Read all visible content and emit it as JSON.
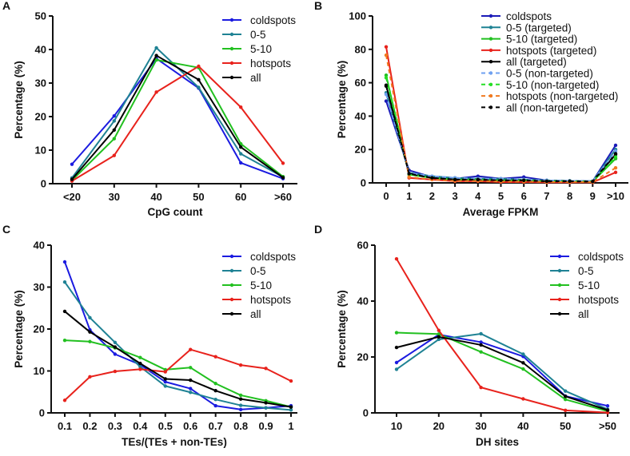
{
  "chart_data": [
    {
      "panel": "A",
      "type": "line",
      "xlabel": "CpG count",
      "ylabel": "Percentage (%)",
      "categories": [
        "<20",
        "30",
        "40",
        "50",
        "60",
        ">60"
      ],
      "ylim": [
        0,
        50
      ],
      "yticks": [
        0,
        10,
        20,
        30,
        40,
        50
      ],
      "grid": false,
      "legend": "top-right",
      "series": [
        {
          "name": "coldspots",
          "color": "#1b1be0",
          "dashed": false,
          "values": [
            5.8,
            20.2,
            37.3,
            28.5,
            6.2,
            1.5
          ]
        },
        {
          "name": "0-5",
          "color": "#1f8294",
          "dashed": false,
          "values": [
            1.7,
            18.7,
            40.5,
            28.7,
            8.9,
            2.0
          ]
        },
        {
          "name": "5-10",
          "color": "#22c020",
          "dashed": false,
          "values": [
            1.0,
            13.4,
            36.9,
            34.6,
            11.9,
            2.1
          ]
        },
        {
          "name": "hotspots",
          "color": "#e8221c",
          "dashed": false,
          "values": [
            0.8,
            8.4,
            27.3,
            35.0,
            22.8,
            6.1
          ]
        },
        {
          "name": "all",
          "color": "#000000",
          "dashed": false,
          "values": [
            1.3,
            16.0,
            38.2,
            31.0,
            10.9,
            1.8
          ]
        }
      ]
    },
    {
      "panel": "B",
      "type": "line",
      "xlabel": "Average FPKM",
      "ylabel": "Percentage (%)",
      "categories": [
        "0",
        "1",
        "2",
        "3",
        "4",
        "5",
        "6",
        "7",
        "8",
        "9",
        ">10"
      ],
      "ylim": [
        0,
        100
      ],
      "yticks": [
        0,
        20,
        40,
        60,
        80,
        100
      ],
      "grid": false,
      "legend": "top-right",
      "series": [
        {
          "name": "coldspots",
          "color": "#1b1bb8",
          "dashed": false,
          "values": [
            49,
            7.5,
            3.5,
            2.5,
            4,
            2.5,
            3.5,
            1.5,
            1.2,
            1,
            22.5
          ]
        },
        {
          "name": "0-5 (targeted)",
          "color": "#1f8294",
          "dashed": false,
          "values": [
            54,
            6,
            4,
            3,
            2.5,
            2.5,
            2,
            1.5,
            1.2,
            1,
            20
          ]
        },
        {
          "name": "5-10 (targeted)",
          "color": "#22c020",
          "dashed": false,
          "values": [
            64.5,
            5,
            3,
            2,
            2,
            1.5,
            1.5,
            1,
            1,
            0.8,
            14.5
          ]
        },
        {
          "name": "hotspots (targeted)",
          "color": "#e8221c",
          "dashed": false,
          "values": [
            81.5,
            3,
            2,
            1,
            1,
            0.5,
            0.5,
            0.3,
            0.3,
            0.3,
            6.3
          ]
        },
        {
          "name": "all (targeted)",
          "color": "#000000",
          "dashed": false,
          "values": [
            58.5,
            5.5,
            3,
            2,
            2,
            1.5,
            1.5,
            1,
            1,
            0.8,
            17
          ]
        },
        {
          "name": "0-5 (non-targeted)",
          "color": "#6fa0f0",
          "dashed": true,
          "values": [
            53,
            6,
            4,
            3,
            2.5,
            2.5,
            2,
            1.5,
            1.2,
            1,
            19
          ]
        },
        {
          "name": "5-10 (non-targeted)",
          "color": "#25de25",
          "dashed": true,
          "values": [
            63,
            5,
            3,
            2,
            2,
            1.5,
            1.5,
            1,
            1,
            0.8,
            15.5
          ]
        },
        {
          "name": "hotspots (non-targeted)",
          "color": "#f07a20",
          "dashed": true,
          "values": [
            76.5,
            3.5,
            2,
            1.2,
            1.2,
            0.8,
            0.8,
            0.5,
            0.5,
            0.5,
            9
          ]
        },
        {
          "name": "all (non-targeted)",
          "color": "#000000",
          "dashed": true,
          "values": [
            58,
            5.5,
            3,
            2,
            2,
            1.5,
            1.5,
            1,
            1,
            0.8,
            17.5
          ]
        }
      ]
    },
    {
      "panel": "C",
      "type": "line",
      "xlabel": "TEs/(TEs + non-TEs)",
      "ylabel": "Percentage (%)",
      "categories": [
        "0.1",
        "0.2",
        "0.3",
        "0.4",
        "0.5",
        "0.6",
        "0.7",
        "0.8",
        "0.9",
        "1"
      ],
      "ylim": [
        0,
        40
      ],
      "yticks": [
        0,
        10,
        20,
        30,
        40
      ],
      "grid": false,
      "legend": "top-right",
      "series": [
        {
          "name": "coldspots",
          "color": "#1b1be0",
          "dashed": false,
          "values": [
            36,
            19.8,
            14,
            11.5,
            7.4,
            5.8,
            1.7,
            0.8,
            1.2,
            1.7
          ]
        },
        {
          "name": "0-5",
          "color": "#1f8294",
          "dashed": false,
          "values": [
            31.2,
            22.7,
            16.8,
            11,
            6.4,
            4.9,
            3.2,
            1.8,
            1.2,
            0.7
          ]
        },
        {
          "name": "5-10",
          "color": "#22c020",
          "dashed": false,
          "values": [
            17.3,
            17,
            15.5,
            13.2,
            10.3,
            10.8,
            7,
            4.2,
            2.9,
            1.4
          ]
        },
        {
          "name": "hotspots",
          "color": "#e8221c",
          "dashed": false,
          "values": [
            3,
            8.6,
            9.9,
            10.4,
            9.8,
            15.1,
            13.4,
            11.4,
            10.6,
            7.6
          ]
        },
        {
          "name": "all",
          "color": "#000000",
          "dashed": false,
          "values": [
            24.2,
            19.3,
            15.7,
            11.8,
            8.1,
            7.8,
            5.3,
            3.3,
            2.4,
            1.4
          ]
        }
      ]
    },
    {
      "panel": "D",
      "type": "line",
      "xlabel": "DH sites",
      "ylabel": "Percentage (%)",
      "categories": [
        "10",
        "20",
        "30",
        "40",
        "50",
        ">50"
      ],
      "ylim": [
        0,
        60
      ],
      "yticks": [
        0,
        20,
        40,
        60
      ],
      "grid": false,
      "legend": "top-right",
      "series": [
        {
          "name": "coldspots",
          "color": "#1b1be0",
          "dashed": false,
          "values": [
            18,
            28,
            25.3,
            20.2,
            6,
            2.5
          ]
        },
        {
          "name": "0-5",
          "color": "#1f8294",
          "dashed": false,
          "values": [
            15.6,
            26.3,
            28.3,
            21,
            7.8,
            1.3
          ]
        },
        {
          "name": "5-10",
          "color": "#22c020",
          "dashed": false,
          "values": [
            28.7,
            28.2,
            21.8,
            15.7,
            4.8,
            0.6
          ]
        },
        {
          "name": "hotspots",
          "color": "#e8221c",
          "dashed": false,
          "values": [
            55.1,
            29.5,
            9.1,
            5,
            0.9,
            0.1
          ]
        },
        {
          "name": "all",
          "color": "#000000",
          "dashed": false,
          "values": [
            23.4,
            27.2,
            24.3,
            17.9,
            5.9,
            1
          ]
        }
      ]
    }
  ]
}
